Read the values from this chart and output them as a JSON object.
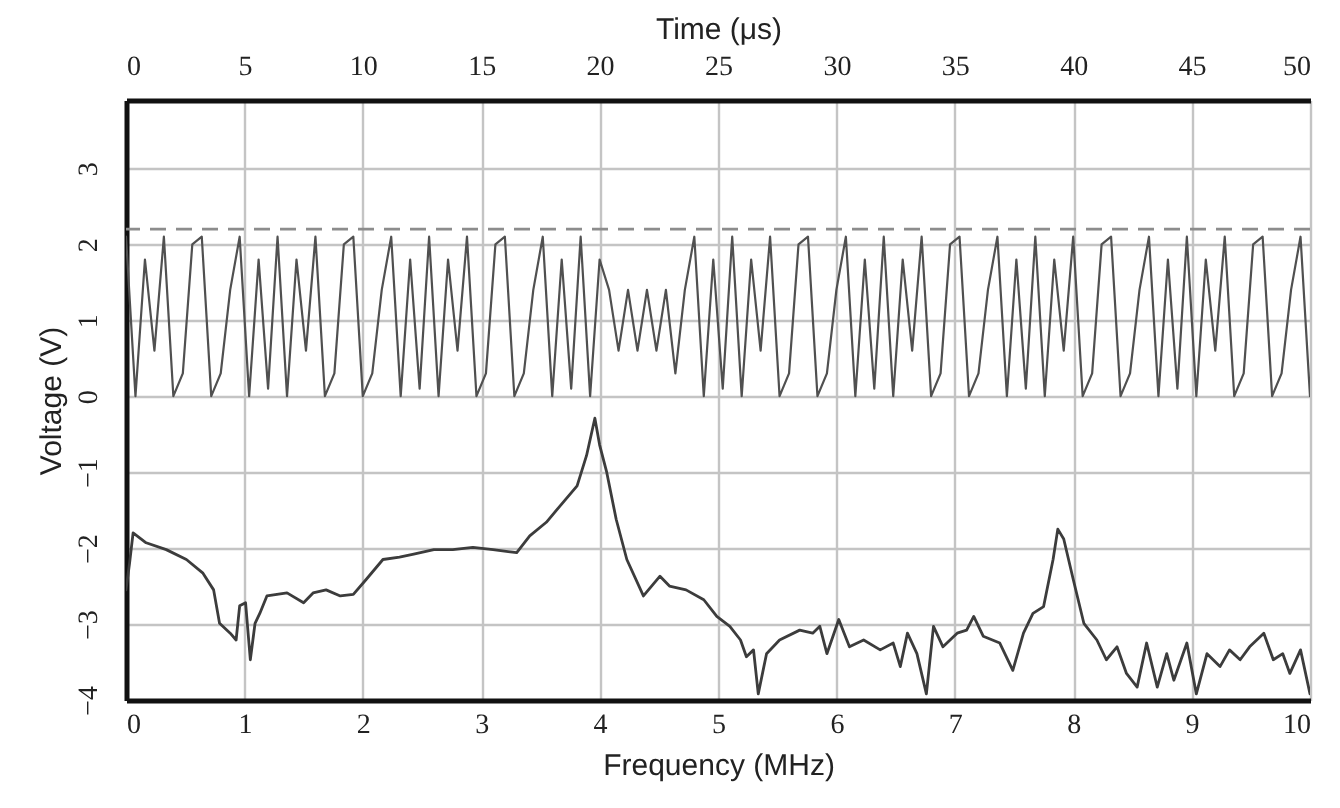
{
  "chart_data": {
    "type": "line",
    "xlabel": "Frequency (MHz)",
    "ylabel": "Voltage (V)",
    "x2label": "Time (μs)",
    "xlim": [
      0,
      10
    ],
    "xticks": [
      0,
      1,
      2,
      3,
      4,
      5,
      6,
      7,
      8,
      9,
      10
    ],
    "x2lim": [
      0,
      50
    ],
    "x2ticks": [
      0,
      5,
      10,
      15,
      20,
      25,
      30,
      35,
      40,
      45,
      50
    ],
    "ylim": [
      -4,
      3.9
    ],
    "yticks": [
      -4,
      -3,
      -2,
      -1,
      0,
      1,
      2,
      3
    ],
    "grid": true,
    "series": [
      {
        "color": "#3c3c3c",
        "x": [
          0.0,
          0.03,
          0.06,
          0.17,
          0.34,
          0.51,
          0.65,
          0.74,
          0.79,
          0.88,
          0.93,
          0.96,
          1.01,
          1.05,
          1.09,
          1.13,
          1.19,
          1.36,
          1.5,
          1.58,
          1.69,
          1.81,
          1.92,
          2.03,
          2.17,
          2.31,
          2.43,
          2.6,
          2.76,
          2.93,
          3.1,
          3.3,
          3.41,
          3.55,
          3.69,
          3.81,
          3.89,
          3.96,
          4.0,
          4.06,
          4.14,
          4.23,
          4.37,
          4.51,
          4.59,
          4.73,
          4.88,
          4.99,
          5.1,
          5.19,
          5.24,
          5.3,
          5.34,
          5.41,
          5.52,
          5.69,
          5.8,
          5.86,
          5.92,
          6.02,
          6.11,
          6.23,
          6.37,
          6.48,
          6.54,
          6.6,
          6.68,
          6.76,
          6.82,
          6.9,
          7.02,
          7.1,
          7.16,
          7.24,
          7.38,
          7.49,
          7.58,
          7.66,
          7.75,
          7.83,
          7.87,
          7.92,
          8.0,
          8.09,
          8.2,
          8.28,
          8.37,
          8.45,
          8.54,
          8.62,
          8.71,
          8.79,
          8.85,
          8.96,
          9.04,
          9.13,
          9.24,
          9.32,
          9.41,
          9.49,
          9.61,
          9.69,
          9.77,
          9.83,
          9.92,
          10.0
        ],
        "values": [
          -2.55,
          -2.2,
          -1.8,
          -1.93,
          -2.02,
          -2.15,
          -2.33,
          -2.55,
          -2.99,
          -3.12,
          -3.21,
          -2.76,
          -2.72,
          -3.47,
          -2.99,
          -2.86,
          -2.63,
          -2.59,
          -2.72,
          -2.59,
          -2.55,
          -2.63,
          -2.61,
          -2.41,
          -2.15,
          -2.12,
          -2.08,
          -2.02,
          -2.02,
          -1.99,
          -2.02,
          -2.06,
          -1.84,
          -1.66,
          -1.4,
          -1.18,
          -0.78,
          -0.29,
          -0.64,
          -1.0,
          -1.62,
          -2.15,
          -2.63,
          -2.37,
          -2.5,
          -2.55,
          -2.68,
          -2.9,
          -3.03,
          -3.21,
          -3.43,
          -3.34,
          -3.92,
          -3.39,
          -3.21,
          -3.08,
          -3.12,
          -3.03,
          -3.39,
          -2.94,
          -3.3,
          -3.21,
          -3.34,
          -3.25,
          -3.56,
          -3.12,
          -3.39,
          -3.92,
          -3.03,
          -3.3,
          -3.12,
          -3.08,
          -2.9,
          -3.16,
          -3.25,
          -3.61,
          -3.12,
          -2.86,
          -2.77,
          -2.15,
          -1.75,
          -1.88,
          -2.41,
          -2.99,
          -3.21,
          -3.47,
          -3.3,
          -3.65,
          -3.83,
          -3.25,
          -3.83,
          -3.39,
          -3.74,
          -3.25,
          -3.92,
          -3.39,
          -3.56,
          -3.34,
          -3.47,
          -3.3,
          -3.12,
          -3.47,
          -3.39,
          -3.65,
          -3.34,
          -3.92
        ]
      },
      {
        "axis": "x2",
        "color": "#505050",
        "x": [
          0,
          0.4,
          0.8,
          1.2,
          1.6,
          2,
          2.4,
          2.8,
          3.2,
          3.6,
          4,
          4.4,
          4.8,
          5.2,
          5.6,
          6,
          6.4,
          6.8,
          7.2,
          7.6,
          8,
          8.4,
          8.8,
          9.2,
          9.6,
          10,
          10.4,
          10.8,
          11.2,
          11.6,
          12,
          12.4,
          12.8,
          13.2,
          13.6,
          14,
          14.4,
          14.8,
          15.2,
          15.6,
          16,
          16.4,
          16.8,
          17.2,
          17.6,
          18,
          18.4,
          18.8,
          19.2,
          19.6,
          20,
          20.4,
          20.8,
          21.2,
          21.6,
          22,
          22.4,
          22.8,
          23.2,
          23.6,
          24,
          24.4,
          24.8,
          25.2,
          25.6,
          26,
          26.4,
          26.8,
          27.2,
          27.6,
          28,
          28.4,
          28.8,
          29.2,
          29.6,
          30,
          30.4,
          30.8,
          31.2,
          31.6,
          32,
          32.4,
          32.8,
          33.2,
          33.6,
          34,
          34.4,
          34.8,
          35.2,
          35.6,
          36,
          36.4,
          36.8,
          37.2,
          37.6,
          38,
          38.4,
          38.8,
          39.2,
          39.6,
          40,
          40.4,
          40.8,
          41.2,
          41.6,
          42,
          42.4,
          42.8,
          43.2,
          43.6,
          44,
          44.4,
          44.8,
          45.2,
          45.6,
          46,
          46.4,
          46.8,
          47.2,
          47.6,
          48,
          48.4,
          48.8,
          49.2,
          49.6,
          50
        ],
        "values": [
          2.1,
          0.0,
          1.8,
          0.6,
          2.1,
          0.0,
          0.3,
          2.0,
          2.1,
          0.0,
          0.3,
          1.4,
          2.1,
          0.0,
          1.8,
          0.1,
          2.1,
          0.0,
          1.8,
          0.6,
          2.1,
          0.0,
          0.3,
          2.0,
          2.1,
          0.0,
          0.3,
          1.4,
          2.1,
          0.0,
          1.8,
          0.1,
          2.1,
          0.0,
          1.8,
          0.6,
          2.1,
          0.0,
          0.3,
          2.0,
          2.1,
          0.0,
          0.3,
          1.4,
          2.1,
          0.0,
          1.8,
          0.1,
          2.1,
          0.0,
          1.8,
          1.4,
          0.6,
          1.4,
          0.6,
          1.4,
          0.6,
          1.4,
          0.3,
          1.4,
          2.1,
          0.0,
          1.8,
          0.1,
          2.1,
          0.0,
          1.8,
          0.6,
          2.1,
          0.0,
          0.3,
          2.0,
          2.1,
          0.0,
          0.3,
          1.4,
          2.1,
          0.0,
          1.8,
          0.1,
          2.1,
          0.0,
          1.8,
          0.6,
          2.1,
          0.0,
          0.3,
          2.0,
          2.1,
          0.0,
          0.3,
          1.4,
          2.1,
          0.0,
          1.8,
          0.1,
          2.1,
          0.0,
          1.8,
          0.6,
          2.1,
          0.0,
          0.3,
          2.0,
          2.1,
          0.0,
          0.3,
          1.4,
          2.1,
          0.0,
          1.8,
          0.1,
          2.1,
          0.0,
          1.8,
          0.6,
          2.1,
          0.0,
          0.3,
          2.0,
          2.1,
          0.0,
          0.3,
          1.4,
          2.1,
          0.0
        ]
      }
    ],
    "ref_lines": [
      {
        "axis": "y",
        "value": 2.2,
        "line_style": "dashed",
        "color": "#8c8c8c"
      }
    ]
  }
}
